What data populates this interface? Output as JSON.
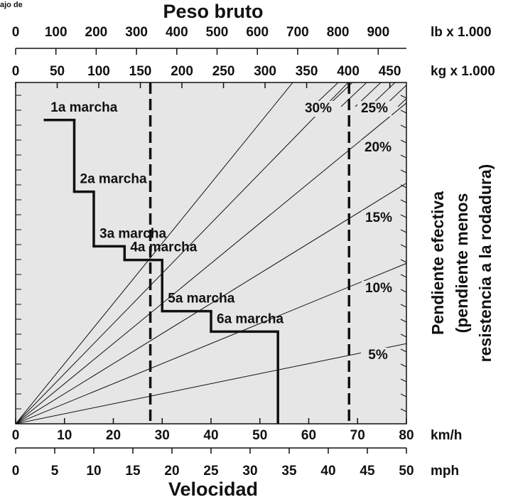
{
  "corner_text": "ajo de",
  "title": "Peso bruto",
  "x_title": "Velocidad",
  "y_title": [
    "Pendiente efectiva",
    "(pendiente menos",
    "resistencia a la rodadura)"
  ],
  "lb_axis": {
    "unit": "lb x 1.000",
    "lim": [
      0,
      970
    ],
    "ticks": [
      0,
      100,
      200,
      300,
      400,
      500,
      600,
      700,
      800,
      900
    ]
  },
  "kg_axis": {
    "unit": "kg x 1.000",
    "lim": [
      0,
      470
    ],
    "ticks": [
      0,
      50,
      100,
      150,
      200,
      250,
      300,
      350,
      400,
      450
    ]
  },
  "kmh_axis": {
    "unit": "km/h",
    "lim": [
      0,
      80
    ],
    "ticks": [
      0,
      10,
      20,
      30,
      40,
      50,
      60,
      70,
      80
    ]
  },
  "mph_axis": {
    "unit": "mph",
    "lim": [
      0,
      50
    ],
    "ticks": [
      0,
      5,
      10,
      15,
      20,
      25,
      30,
      35,
      40,
      45,
      50
    ]
  },
  "rimpull_lim": [
    0,
    100
  ],
  "grades": {
    "values": [
      5,
      10,
      15,
      20,
      25,
      30
    ],
    "labels": [
      "5%",
      "10%",
      "15%",
      "20%",
      "25%",
      "30%"
    ]
  },
  "gears": [
    {
      "name": "1a marcha",
      "speed": [
        6,
        12
      ],
      "rimpull": 89
    },
    {
      "name": "2a marcha",
      "speed": [
        12,
        16
      ],
      "rimpull": 68
    },
    {
      "name": "3a marcha",
      "speed": [
        16,
        22.3
      ],
      "rimpull": 52
    },
    {
      "name": "4a marcha",
      "speed": [
        22.3,
        30
      ],
      "rimpull": 48
    },
    {
      "name": "5a marcha",
      "speed": [
        30,
        40
      ],
      "rimpull": 33
    },
    {
      "name": "6a marcha",
      "speed": [
        40,
        53.7
      ],
      "rimpull": 27
    }
  ],
  "weight_markers_kg": [
    162,
    401
  ]
}
